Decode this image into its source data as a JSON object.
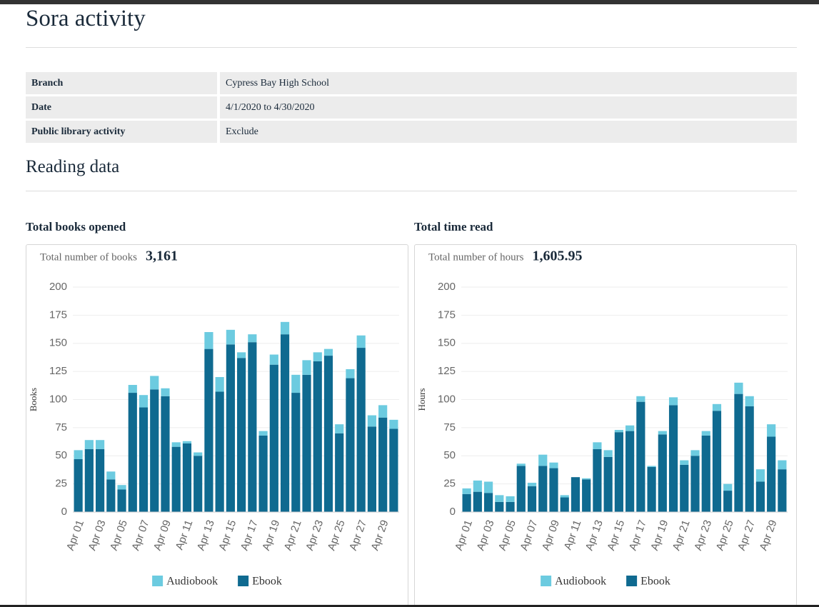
{
  "title": "Sora activity",
  "table": {
    "rows": [
      [
        "Branch",
        "Cypress Bay High School"
      ],
      [
        "Date",
        "4/1/2020 to 4/30/2020"
      ],
      [
        "Public library activity",
        "Exclude"
      ]
    ]
  },
  "section_title": "Reading data",
  "chart_data": [
    {
      "type": "bar",
      "stacked": true,
      "title": "Total books opened",
      "summary_label": "Total number of books",
      "summary_value": "3,161",
      "ylabel": "Books",
      "ylim": [
        0,
        200
      ],
      "yticks": [
        0,
        25,
        50,
        75,
        100,
        125,
        150,
        175,
        200
      ],
      "grid": true,
      "legend": "bottom",
      "categories": [
        "Apr 01",
        null,
        "Apr 03",
        null,
        "Apr 05",
        null,
        "Apr 07",
        null,
        "Apr 09",
        null,
        "Apr 11",
        null,
        "Apr 13",
        null,
        "Apr 15",
        null,
        "Apr 17",
        null,
        "Apr 19",
        null,
        "Apr 21",
        null,
        "Apr 23",
        null,
        "Apr 25",
        null,
        "Apr 27",
        null,
        "Apr 29",
        null
      ],
      "series": [
        {
          "name": "Audiobook",
          "color": "#6ccbe0",
          "values": [
            8,
            8,
            8,
            7,
            4,
            7,
            11,
            12,
            7,
            4,
            2,
            3,
            15,
            13,
            13,
            5,
            7,
            4,
            9,
            11,
            16,
            13,
            8,
            6,
            8,
            8,
            11,
            10,
            11,
            8
          ]
        },
        {
          "name": "Ebook",
          "color": "#0f6a90",
          "values": [
            47,
            56,
            56,
            29,
            20,
            106,
            93,
            109,
            103,
            58,
            61,
            50,
            145,
            107,
            149,
            137,
            151,
            68,
            131,
            158,
            106,
            122,
            134,
            139,
            70,
            119,
            146,
            76,
            84,
            74
          ]
        }
      ]
    },
    {
      "type": "bar",
      "stacked": true,
      "title": "Total time read",
      "summary_label": "Total number of hours",
      "summary_value": "1,605.95",
      "ylabel": "Hours",
      "ylim": [
        0,
        200
      ],
      "yticks": [
        0,
        25,
        50,
        75,
        100,
        125,
        150,
        175,
        200
      ],
      "grid": true,
      "legend": "bottom",
      "categories": [
        "Apr 01",
        null,
        "Apr 03",
        null,
        "Apr 05",
        null,
        "Apr 07",
        null,
        "Apr 09",
        null,
        "Apr 11",
        null,
        "Apr 13",
        null,
        "Apr 15",
        null,
        "Apr 17",
        null,
        "Apr 19",
        null,
        "Apr 21",
        null,
        "Apr 23",
        null,
        "Apr 25",
        null,
        "Apr 27",
        null,
        "Apr 29",
        null
      ],
      "series": [
        {
          "name": "Audiobook",
          "color": "#6ccbe0",
          "values": [
            5,
            10,
            10,
            6,
            5,
            2,
            3,
            10,
            5,
            2,
            0,
            1,
            6,
            6,
            2,
            5,
            5,
            1,
            3,
            7,
            4,
            5,
            4,
            6,
            6,
            10,
            9,
            11,
            11,
            8
          ]
        },
        {
          "name": "Ebook",
          "color": "#0f6a90",
          "values": [
            16,
            18,
            17,
            9,
            9,
            41,
            23,
            41,
            39,
            13,
            31,
            29,
            56,
            49,
            71,
            72,
            98,
            40,
            69,
            95,
            42,
            50,
            68,
            90,
            19,
            105,
            94,
            27,
            67,
            38
          ]
        }
      ]
    }
  ]
}
